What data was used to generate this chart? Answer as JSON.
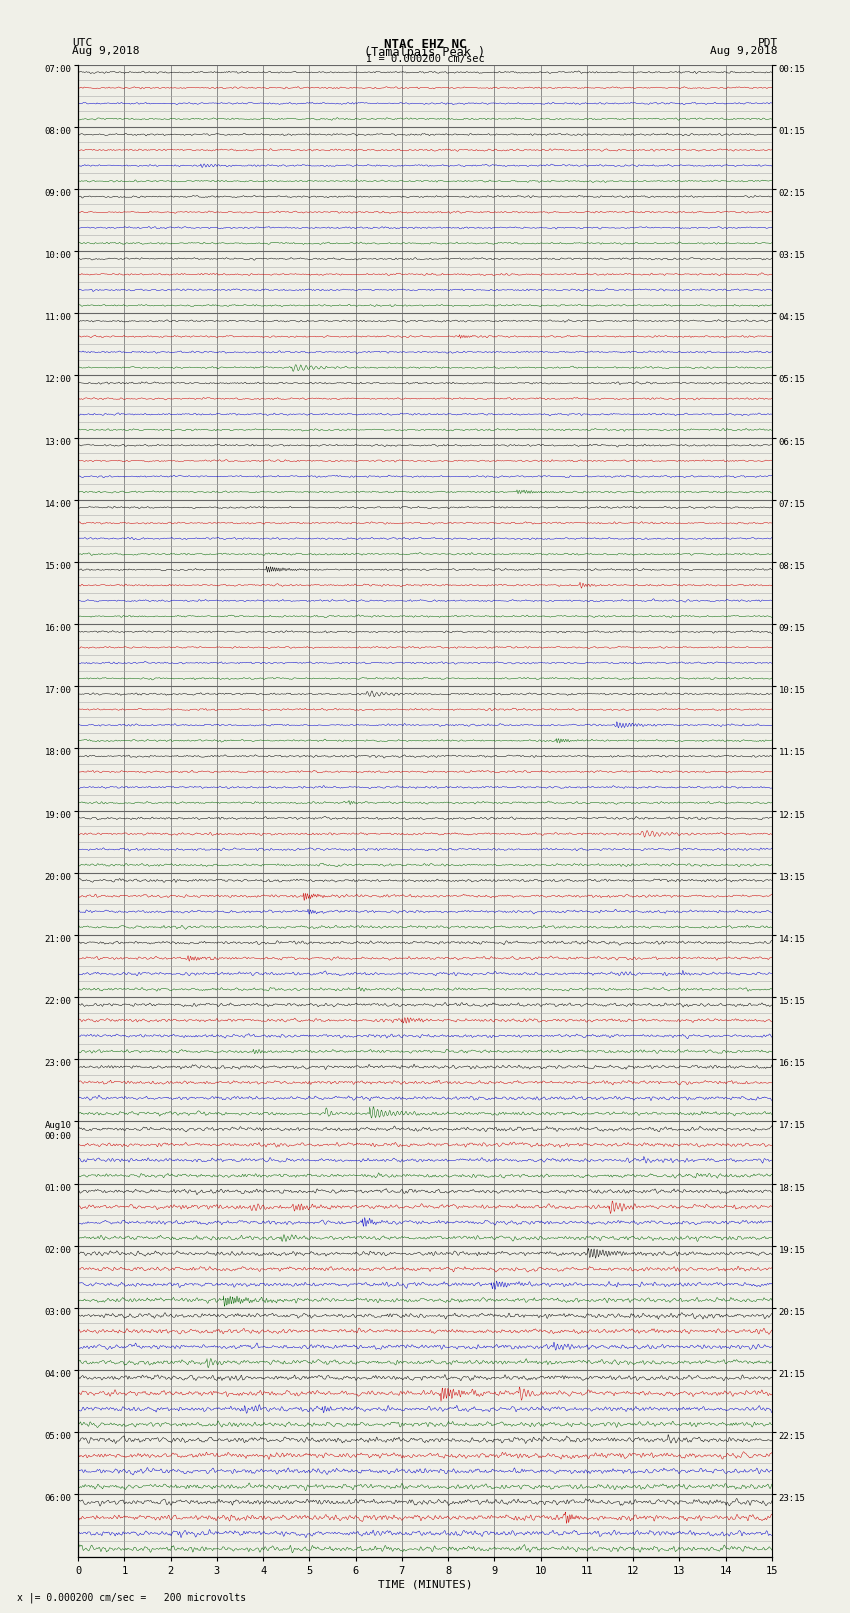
{
  "title_line1": "NTAC EHZ NC",
  "title_line2": "(Tamalpais Peak )",
  "title_scale": "I = 0.000200 cm/sec",
  "left_header_1": "UTC",
  "left_header_2": "Aug 9,2018",
  "right_header_1": "PDT",
  "right_header_2": "Aug 9,2018",
  "xlabel": "TIME (MINUTES)",
  "footnote": "x |= 0.000200 cm/sec =   200 microvolts",
  "bg_color": "#f0f0e8",
  "trace_colors": [
    "#000000",
    "#cc0000",
    "#0000cc",
    "#006600"
  ],
  "grid_color": "#aaaaaa",
  "grid_major_color": "#666666",
  "utc_labels": [
    "07:00",
    "08:00",
    "09:00",
    "10:00",
    "11:00",
    "12:00",
    "13:00",
    "14:00",
    "15:00",
    "16:00",
    "17:00",
    "18:00",
    "19:00",
    "20:00",
    "21:00",
    "22:00",
    "23:00",
    "Aug10\n00:00",
    "01:00",
    "02:00",
    "03:00",
    "04:00",
    "05:00",
    "06:00"
  ],
  "pdt_labels": [
    "00:15",
    "01:15",
    "02:15",
    "03:15",
    "04:15",
    "05:15",
    "06:15",
    "07:15",
    "08:15",
    "09:15",
    "10:15",
    "11:15",
    "12:15",
    "13:15",
    "14:15",
    "15:15",
    "16:15",
    "17:15",
    "18:15",
    "19:15",
    "20:15",
    "21:15",
    "22:15",
    "23:15"
  ],
  "n_hour_blocks": 24,
  "traces_per_block": 4,
  "xmin": 0,
  "xmax": 15,
  "n_points": 1800
}
